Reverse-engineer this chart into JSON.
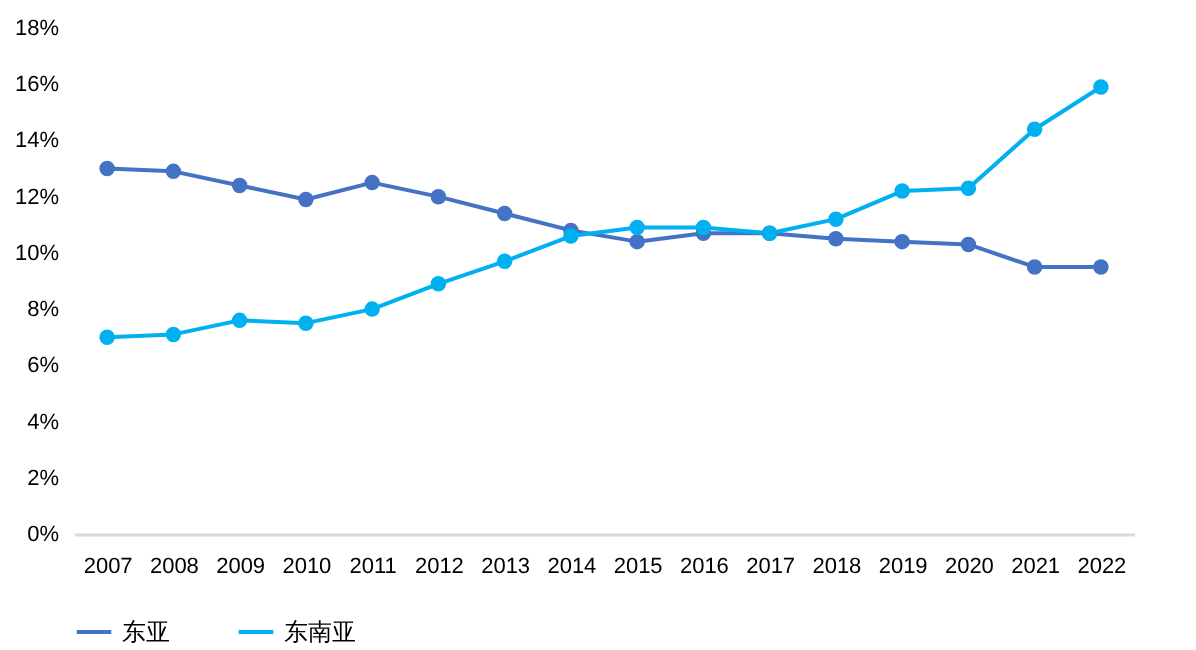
{
  "chart_data": {
    "type": "line",
    "categories": [
      "2007",
      "2008",
      "2009",
      "2010",
      "2011",
      "2012",
      "2013",
      "2014",
      "2015",
      "2016",
      "2017",
      "2018",
      "2019",
      "2020",
      "2021",
      "2022"
    ],
    "series": [
      {
        "name": "东亚",
        "color": "#4472c4",
        "values": [
          13.0,
          12.9,
          12.4,
          11.9,
          12.5,
          12.0,
          11.4,
          10.8,
          10.4,
          10.7,
          10.7,
          10.5,
          10.4,
          10.3,
          9.5,
          9.5
        ]
      },
      {
        "name": "东南亚",
        "color": "#00b0f0",
        "values": [
          7.0,
          7.1,
          7.6,
          7.5,
          8.0,
          8.9,
          9.7,
          10.6,
          10.9,
          10.9,
          10.7,
          11.2,
          12.2,
          12.3,
          14.4,
          15.9
        ]
      }
    ],
    "ylim": [
      0,
      18
    ],
    "yticks": [
      {
        "value": 0,
        "label": "0%"
      },
      {
        "value": 2,
        "label": "2%"
      },
      {
        "value": 4,
        "label": "4%"
      },
      {
        "value": 6,
        "label": "6%"
      },
      {
        "value": 8,
        "label": "8%"
      },
      {
        "value": 10,
        "label": "10%"
      },
      {
        "value": 12,
        "label": "12%"
      },
      {
        "value": 14,
        "label": "14%"
      },
      {
        "value": 16,
        "label": "16%"
      },
      {
        "value": 18,
        "label": "18%"
      }
    ],
    "grid": false,
    "legend": "bottom",
    "marker": "circle",
    "line_style": "solid"
  }
}
